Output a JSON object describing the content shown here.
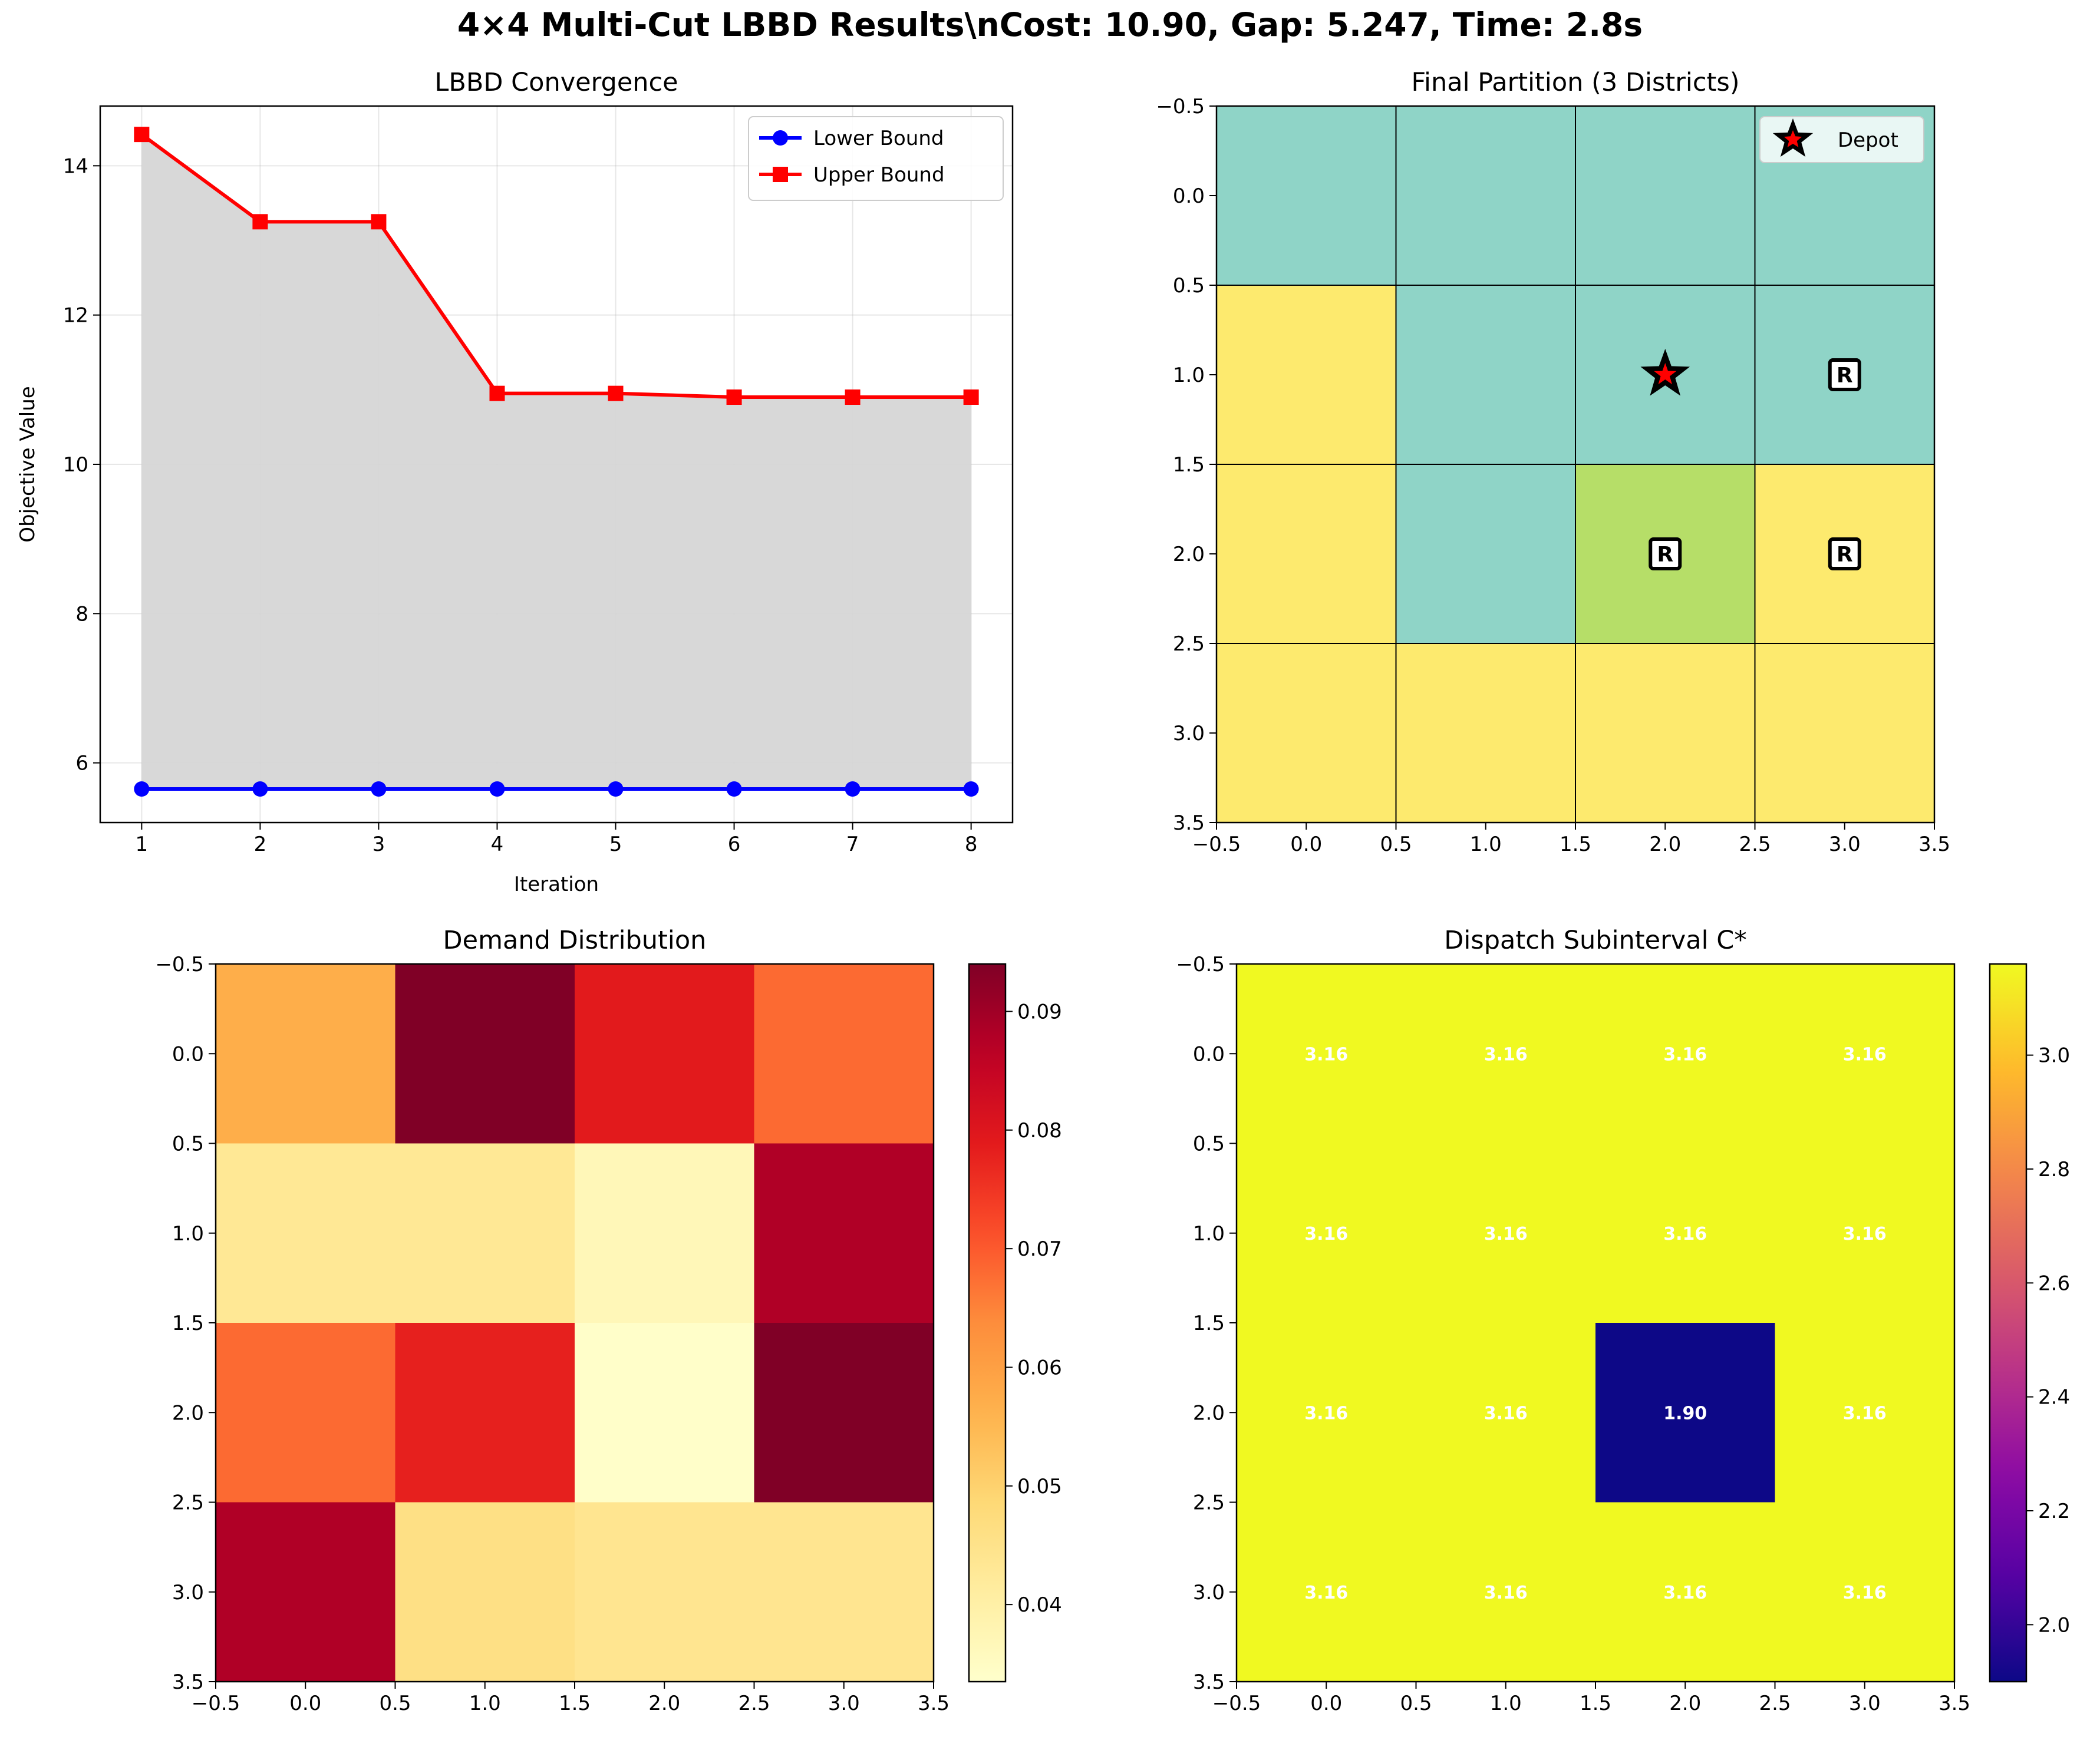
{
  "suptitle": "4×4 Multi-Cut LBBD Results\\nCost: 10.90, Gap: 5.247, Time: 2.8s",
  "chart_data": [
    {
      "id": "convergence",
      "type": "line",
      "title": "LBBD Convergence",
      "xlabel": "Iteration",
      "ylabel": "Objective Value",
      "x": [
        1,
        2,
        3,
        4,
        5,
        6,
        7,
        8
      ],
      "xlim": [
        0.65,
        8.35
      ],
      "ylim": [
        5.2,
        14.8
      ],
      "xticks": [
        1,
        2,
        3,
        4,
        5,
        6,
        7,
        8
      ],
      "yticks": [
        6,
        8,
        10,
        12,
        14
      ],
      "grid": true,
      "legend_position": "upper-right",
      "fill_between": {
        "color": "#d6d6d6",
        "between": [
          "Lower Bound",
          "Upper Bound"
        ]
      },
      "series": [
        {
          "name": "Lower Bound",
          "color": "#0000ff",
          "marker": "circle",
          "values": [
            5.65,
            5.65,
            5.65,
            5.65,
            5.65,
            5.65,
            5.65,
            5.65
          ]
        },
        {
          "name": "Upper Bound",
          "color": "#ff0000",
          "marker": "square",
          "values": [
            14.42,
            13.25,
            13.25,
            10.95,
            10.95,
            10.9,
            10.9,
            10.9
          ]
        }
      ]
    },
    {
      "id": "partition",
      "type": "heatmap",
      "title": "Final Partition (3 Districts)",
      "xlim": [
        -0.5,
        3.5
      ],
      "ylim": [
        3.5,
        -0.5
      ],
      "ticks": [
        -0.5,
        0.0,
        0.5,
        1.0,
        1.5,
        2.0,
        2.5,
        3.0,
        3.5
      ],
      "tick_labels": [
        "−0.5",
        "0.0",
        "0.5",
        "1.0",
        "1.5",
        "2.0",
        "2.5",
        "3.0",
        "3.5"
      ],
      "district_colors": {
        "A": "#8fd4c7",
        "B": "#b6de68",
        "C": "#fdea6e"
      },
      "grid_lines": true,
      "cells": [
        [
          "A",
          "A",
          "A",
          "A"
        ],
        [
          "C",
          "A",
          "A",
          "A"
        ],
        [
          "C",
          "A",
          "B",
          "C"
        ],
        [
          "C",
          "C",
          "C",
          "C"
        ]
      ],
      "depot": {
        "label": "Depot",
        "row": 1,
        "col": 2
      },
      "markers": [
        {
          "label": "R",
          "row": 1,
          "col": 3
        },
        {
          "label": "R",
          "row": 2,
          "col": 2
        },
        {
          "label": "R",
          "row": 2,
          "col": 3
        }
      ],
      "legend_position": "upper-right"
    },
    {
      "id": "demand",
      "type": "heatmap",
      "title": "Demand Distribution",
      "colormap": "YlOrRd",
      "xlim": [
        -0.5,
        3.5
      ],
      "ylim": [
        3.5,
        -0.5
      ],
      "ticks": [
        -0.5,
        0.0,
        0.5,
        1.0,
        1.5,
        2.0,
        2.5,
        3.0,
        3.5
      ],
      "tick_labels": [
        "−0.5",
        "0.0",
        "0.5",
        "1.0",
        "1.5",
        "2.0",
        "2.5",
        "3.0",
        "3.5"
      ],
      "values": [
        [
          0.057,
          0.094,
          0.079,
          0.068
        ],
        [
          0.043,
          0.043,
          0.037,
          0.088
        ],
        [
          0.068,
          0.078,
          0.034,
          0.094
        ],
        [
          0.088,
          0.046,
          0.044,
          0.044
        ]
      ],
      "colorbar": {
        "min": 0.0335,
        "max": 0.094,
        "ticks": [
          0.04,
          0.05,
          0.06,
          0.07,
          0.08,
          0.09
        ],
        "tick_labels": [
          "0.04",
          "0.05",
          "0.06",
          "0.07",
          "0.08",
          "0.09"
        ]
      }
    },
    {
      "id": "dispatch",
      "type": "heatmap",
      "title": "Dispatch Subinterval C*",
      "colormap": "plasma",
      "xlim": [
        -0.5,
        3.5
      ],
      "ylim": [
        3.5,
        -0.5
      ],
      "ticks": [
        -0.5,
        0.0,
        0.5,
        1.0,
        1.5,
        2.0,
        2.5,
        3.0,
        3.5
      ],
      "tick_labels": [
        "−0.5",
        "0.0",
        "0.5",
        "1.0",
        "1.5",
        "2.0",
        "2.5",
        "3.0",
        "3.5"
      ],
      "values": [
        [
          3.16,
          3.16,
          3.16,
          3.16
        ],
        [
          3.16,
          3.16,
          3.16,
          3.16
        ],
        [
          3.16,
          3.16,
          1.9,
          3.16
        ],
        [
          3.16,
          3.16,
          3.16,
          3.16
        ]
      ],
      "cell_labels": [
        [
          "3.16",
          "3.16",
          "3.16",
          "3.16"
        ],
        [
          "3.16",
          "3.16",
          "3.16",
          "3.16"
        ],
        [
          "3.16",
          "3.16",
          "1.90",
          "3.16"
        ],
        [
          "3.16",
          "3.16",
          "3.16",
          "3.16"
        ]
      ],
      "colorbar": {
        "min": 1.9,
        "max": 3.16,
        "ticks": [
          2.0,
          2.2,
          2.4,
          2.6,
          2.8,
          3.0
        ],
        "tick_labels": [
          "2.0",
          "2.2",
          "2.4",
          "2.6",
          "2.8",
          "3.0"
        ]
      }
    }
  ]
}
